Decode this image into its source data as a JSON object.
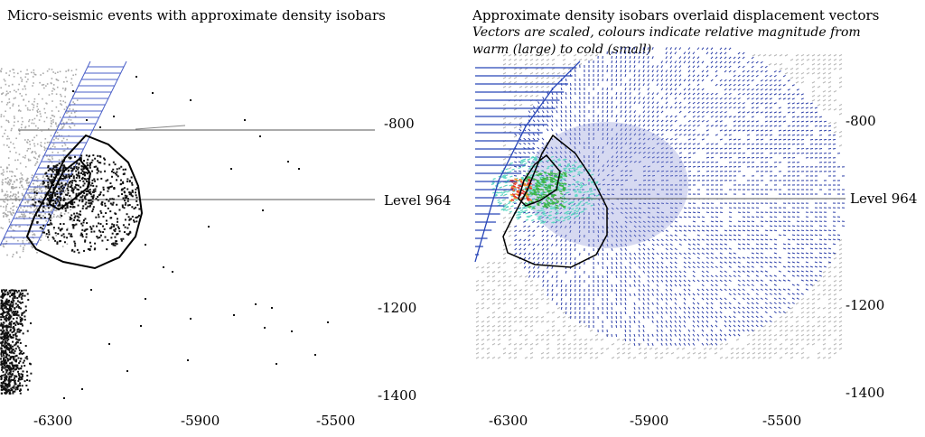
{
  "left_panel": {
    "title": "Micro-seismic events with approximate density isobars",
    "level_label": "Level 964",
    "y_ticks": [
      "-800",
      "-1200",
      "-1400"
    ],
    "x_ticks": [
      "-6300",
      "-5900",
      "-5500"
    ]
  },
  "right_panel": {
    "title": "Approximate density isobars overlaid displacement vectors",
    "subtitle_line1": "Vectors are scaled, colours indicate relative magnitude from",
    "subtitle_line2": "warm (large) to cold (small)",
    "level_label": "Level 964",
    "y_ticks": [
      "-800",
      "-1200",
      "-1400"
    ],
    "x_ticks": [
      "-6300",
      "-5900",
      "-5500"
    ]
  },
  "colors": {
    "events": "#111111",
    "grey_events": "#aaaaaa",
    "hatch": "#4a5fc8",
    "vectors_cold": "#2b3ea8",
    "vectors_mid": "#8a93d8",
    "vectors_grey": "#b8b8b8",
    "warm_red": "#e8322a",
    "warm_orange": "#f29a2e",
    "mid_green": "#3cb54a",
    "mid_teal": "#5fd7c4"
  }
}
